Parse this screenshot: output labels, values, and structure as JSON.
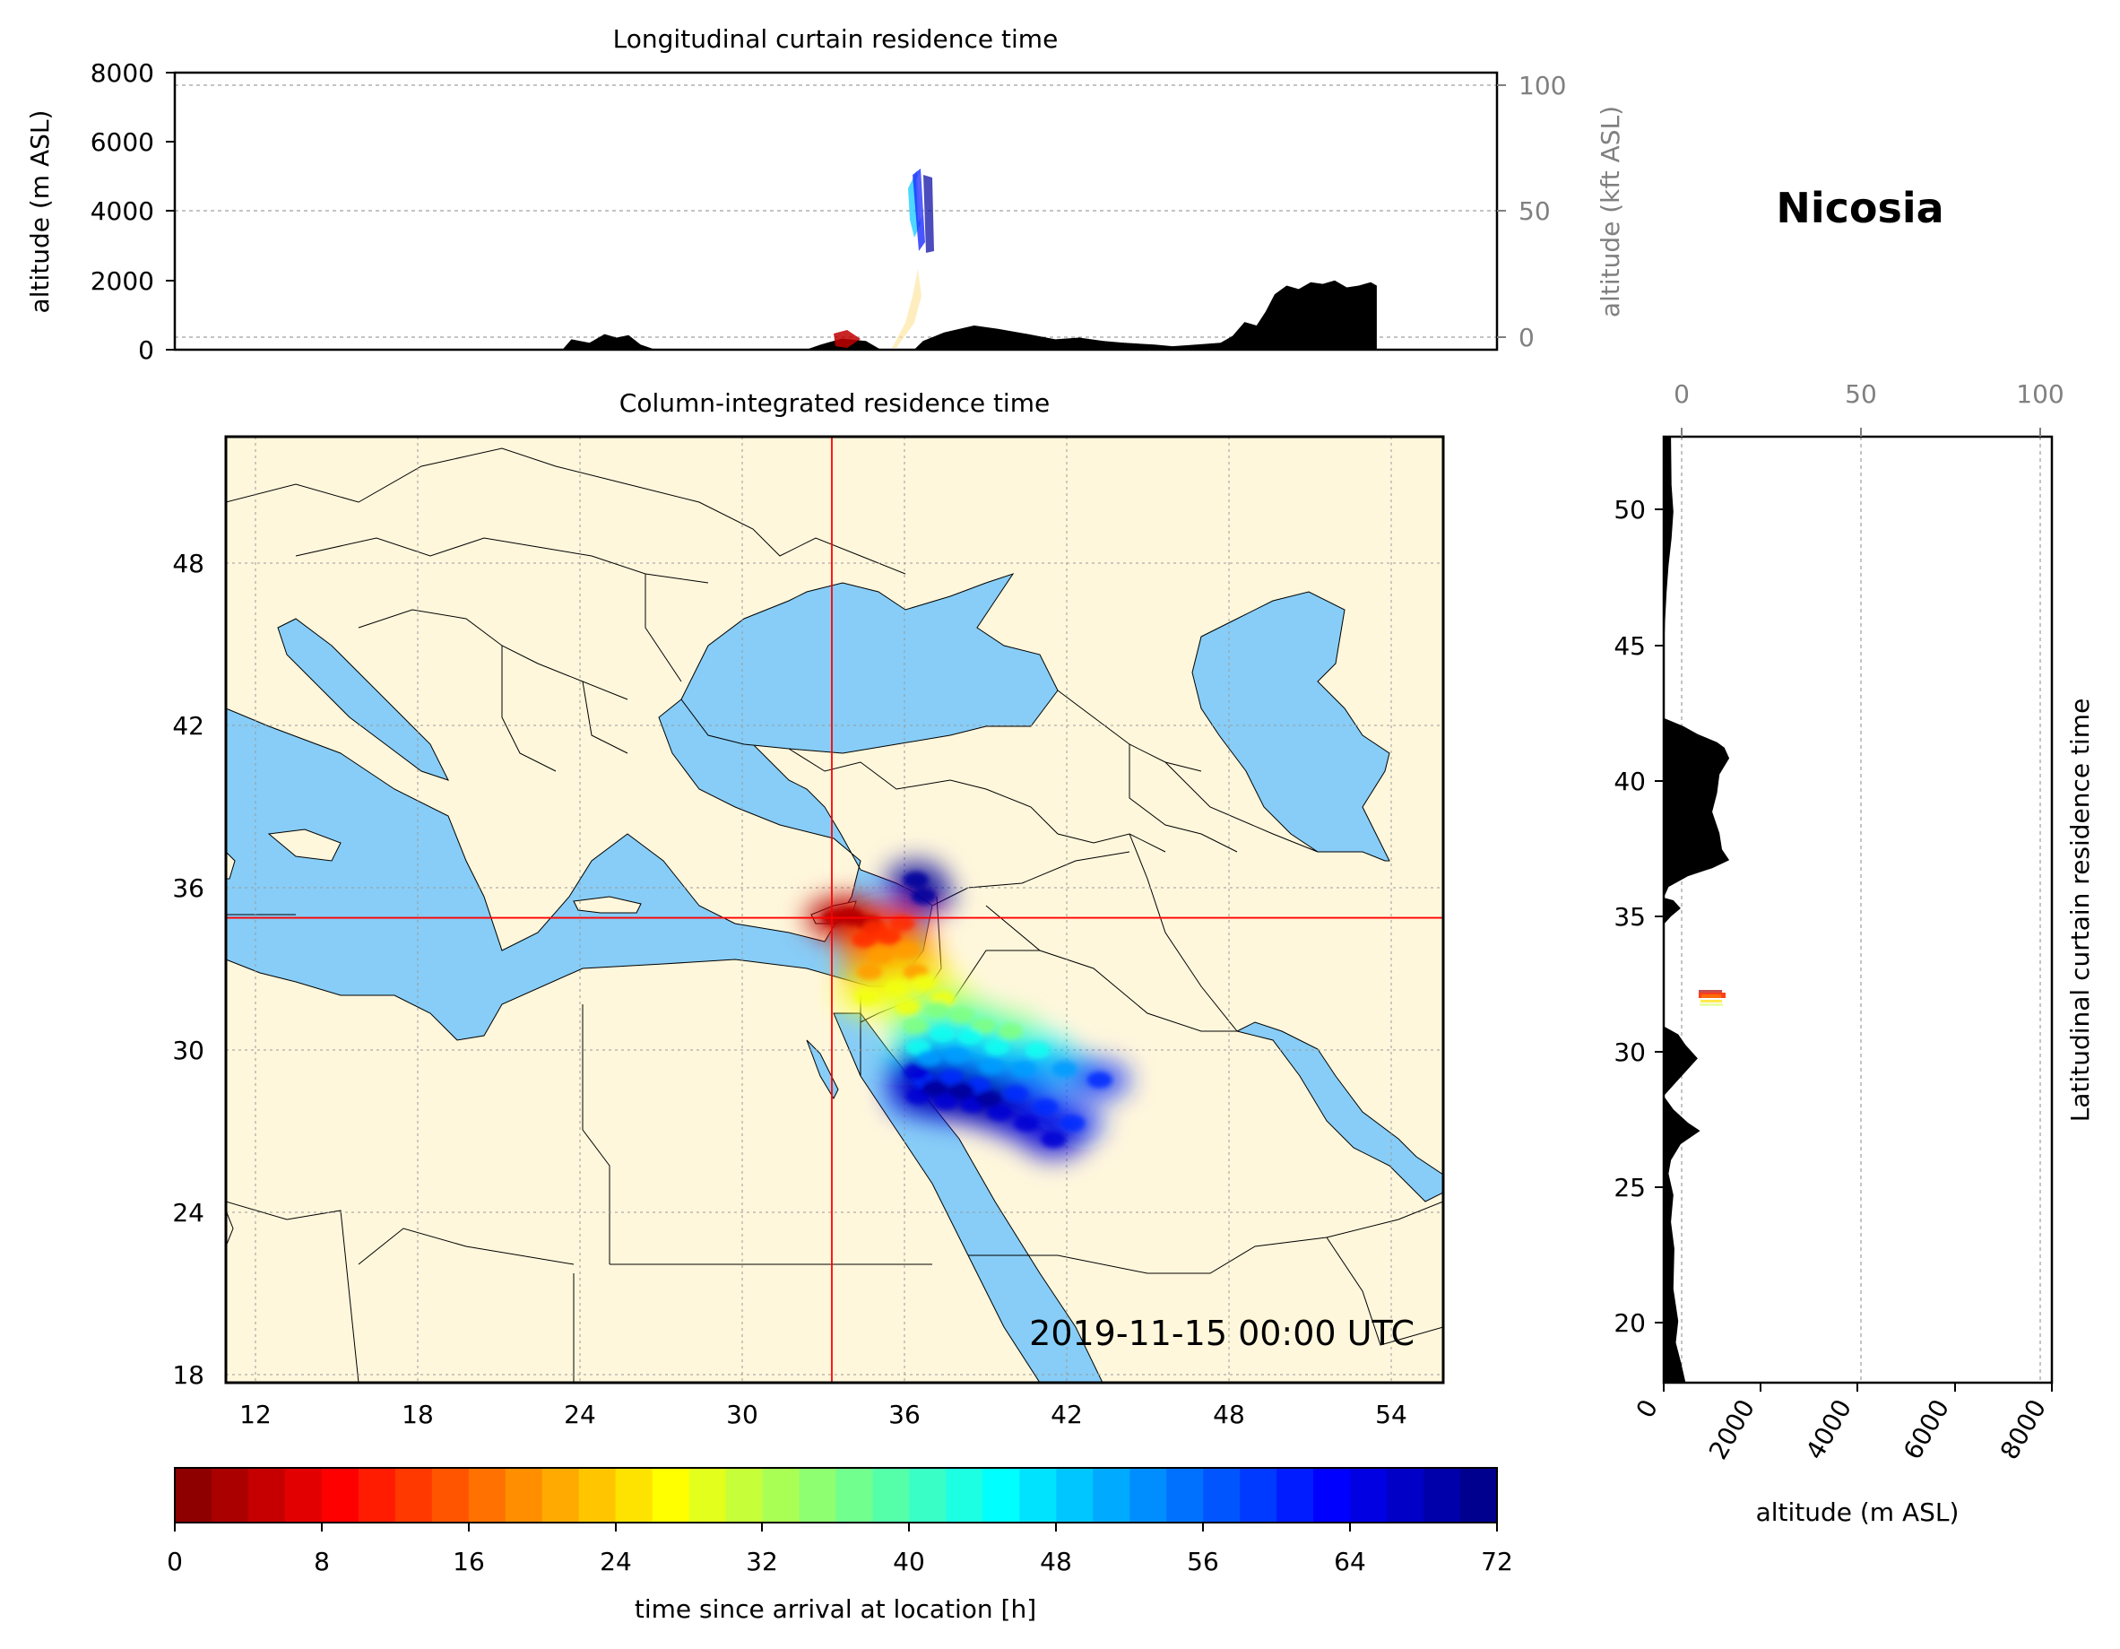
{
  "figure": {
    "station_title": "Nicosia",
    "timestamp": "2019-11-15 00:00 UTC"
  },
  "colors": {
    "ocean": "#87cdf7",
    "land": "#fff7dc",
    "crosshair": "#ff0000",
    "terrain": "#000000",
    "frame": "#000000"
  },
  "chart_data": [
    {
      "type": "area",
      "title": "Longitudinal curtain residence time",
      "ylabel": "altitude (m ASL)",
      "ylabel_right": "altitude (kft ASL)",
      "xlim": [
        11,
        55
      ],
      "ylim": [
        0,
        8000
      ],
      "yticks": [
        "0",
        "2000",
        "4000",
        "6000",
        "8000"
      ],
      "yticks_right": [
        "0",
        "50",
        "100"
      ],
      "grid": true,
      "series": [
        {
          "points": [
            [
              11,
              0
            ],
            [
              23.9,
              0
            ],
            [
              24.2,
              300
            ],
            [
              24.8,
              200
            ],
            [
              25.3,
              450
            ],
            [
              25.7,
              350
            ],
            [
              26.1,
              420
            ],
            [
              26.5,
              150
            ],
            [
              27.0,
              0
            ],
            [
              32.0,
              0
            ],
            [
              32.5,
              150
            ],
            [
              33.2,
              320
            ],
            [
              34.0,
              250
            ],
            [
              34.5,
              0
            ],
            [
              35.6,
              0
            ],
            [
              35.9,
              250
            ],
            [
              36.6,
              500
            ],
            [
              37.6,
              700
            ],
            [
              38.4,
              600
            ],
            [
              39.4,
              450
            ],
            [
              40.3,
              300
            ],
            [
              41.1,
              350
            ],
            [
              41.9,
              250
            ],
            [
              42.6,
              200
            ],
            [
              43.6,
              150
            ],
            [
              44.2,
              100
            ],
            [
              45.0,
              150
            ],
            [
              45.8,
              200
            ],
            [
              46.2,
              400
            ],
            [
              46.6,
              800
            ],
            [
              47.0,
              700
            ],
            [
              47.3,
              1100
            ],
            [
              47.6,
              1600
            ],
            [
              48.0,
              1850
            ],
            [
              48.4,
              1750
            ],
            [
              48.8,
              1950
            ],
            [
              49.2,
              1900
            ],
            [
              49.6,
              2000
            ],
            [
              50.0,
              1800
            ],
            [
              50.4,
              1850
            ],
            [
              50.8,
              1950
            ],
            [
              51.0,
              1850
            ],
            [
              51.0,
              0
            ]
          ]
        }
      ]
    },
    {
      "type": "heatmap",
      "title": "Column-integrated residence time",
      "xlim": [
        11,
        56
      ],
      "ylim": [
        18,
        53
      ],
      "xticks": [
        "12",
        "18",
        "24",
        "30",
        "36",
        "42",
        "48",
        "54"
      ],
      "yticks": [
        "18",
        "24",
        "30",
        "36",
        "42",
        "48"
      ],
      "release_point": [
        33.4,
        35.2
      ],
      "plume_groups": [
        {
          "hours": 4,
          "points": [
            [
              33.5,
              35.2
            ],
            [
              34.2,
              35.2
            ],
            [
              34.8,
              35.0
            ],
            [
              34.0,
              35.3
            ]
          ]
        },
        {
          "hours": 12,
          "points": [
            [
              35.0,
              34.8
            ],
            [
              35.5,
              34.5
            ],
            [
              34.6,
              34.4
            ],
            [
              36.0,
              35.0
            ]
          ]
        },
        {
          "hours": 20,
          "points": [
            [
              35.2,
              33.8
            ],
            [
              36.2,
              34.0
            ],
            [
              34.8,
              33.2
            ],
            [
              36.5,
              33.2
            ]
          ]
        },
        {
          "hours": 28,
          "points": [
            [
              35.8,
              32.6
            ],
            [
              36.8,
              32.8
            ],
            [
              34.7,
              32.3
            ],
            [
              37.5,
              32.2
            ],
            [
              36.2,
              31.9
            ]
          ]
        },
        {
          "hours": 36,
          "points": [
            [
              37.3,
              31.8
            ],
            [
              38.2,
              31.6
            ],
            [
              36.5,
              31.2
            ],
            [
              39.0,
              31.2
            ],
            [
              40.0,
              31.0
            ]
          ]
        },
        {
          "hours": 44,
          "points": [
            [
              37.5,
              30.9
            ],
            [
              38.5,
              30.8
            ],
            [
              36.6,
              30.4
            ],
            [
              39.5,
              30.4
            ],
            [
              41.0,
              30.3
            ]
          ]
        },
        {
          "hours": 52,
          "points": [
            [
              37.0,
              30.0
            ],
            [
              38.0,
              30.1
            ],
            [
              39.3,
              29.7
            ],
            [
              40.5,
              29.6
            ],
            [
              42.0,
              29.6
            ]
          ]
        },
        {
          "hours": 60,
          "points": [
            [
              36.8,
              29.2
            ],
            [
              37.8,
              29.3
            ],
            [
              38.8,
              29.0
            ],
            [
              40.2,
              28.7
            ],
            [
              41.3,
              28.2
            ],
            [
              42.3,
              27.6
            ],
            [
              43.3,
              29.2
            ]
          ]
        },
        {
          "hours": 66,
          "points": [
            [
              36.6,
              28.6
            ],
            [
              37.6,
              28.4
            ],
            [
              38.6,
              28.3
            ],
            [
              39.6,
              28.0
            ],
            [
              40.6,
              27.6
            ],
            [
              41.6,
              27.0
            ],
            [
              36.5,
              29.5
            ]
          ]
        },
        {
          "hours": 70,
          "points": [
            [
              37.2,
              28.9
            ],
            [
              38.2,
              28.8
            ],
            [
              39.2,
              28.5
            ],
            [
              36.8,
              36.0
            ],
            [
              36.5,
              36.6
            ]
          ]
        }
      ]
    },
    {
      "type": "area",
      "title": "Latitudinal curtain residence time",
      "xlabel": "altitude (m ASL)",
      "xlim": [
        0,
        8000
      ],
      "ylim": [
        17.5,
        52.8
      ],
      "xticks": [
        "0",
        "2000",
        "4000",
        "6000",
        "8000"
      ],
      "xticks_top": [
        "0",
        "50",
        "100"
      ],
      "yticks": [
        "20",
        "25",
        "30",
        "35",
        "40",
        "45",
        "50"
      ],
      "grid": true,
      "series": [
        {
          "points": [
            [
              52.8,
              150
            ],
            [
              51.0,
              160
            ],
            [
              50.0,
              200
            ],
            [
              49.0,
              160
            ],
            [
              48.0,
              100
            ],
            [
              47.0,
              60
            ],
            [
              46.0,
              30
            ],
            [
              45.0,
              10
            ],
            [
              42.3,
              0
            ],
            [
              42.0,
              400
            ],
            [
              41.7,
              700
            ],
            [
              41.4,
              1100
            ],
            [
              41.2,
              1250
            ],
            [
              40.8,
              1350
            ],
            [
              40.2,
              1150
            ],
            [
              39.5,
              1100
            ],
            [
              38.8,
              1000
            ],
            [
              38.0,
              1150
            ],
            [
              37.4,
              1200
            ],
            [
              37.0,
              1350
            ],
            [
              36.7,
              1000
            ],
            [
              36.4,
              500
            ],
            [
              36.0,
              100
            ],
            [
              35.6,
              0
            ],
            [
              35.5,
              200
            ],
            [
              35.2,
              350
            ],
            [
              34.9,
              150
            ],
            [
              34.6,
              0
            ],
            [
              30.8,
              0
            ],
            [
              30.5,
              300
            ],
            [
              30.1,
              450
            ],
            [
              29.6,
              700
            ],
            [
              29.1,
              450
            ],
            [
              28.6,
              200
            ],
            [
              28.2,
              0
            ],
            [
              27.7,
              200
            ],
            [
              27.2,
              500
            ],
            [
              26.9,
              750
            ],
            [
              26.4,
              350
            ],
            [
              25.8,
              150
            ],
            [
              25.3,
              100
            ],
            [
              24.5,
              200
            ],
            [
              23.5,
              150
            ],
            [
              22.5,
              220
            ],
            [
              21.0,
              200
            ],
            [
              19.8,
              300
            ],
            [
              19.0,
              250
            ],
            [
              18.3,
              350
            ],
            [
              17.9,
              400
            ],
            [
              17.5,
              450
            ]
          ]
        }
      ]
    },
    {
      "type": "heatmap",
      "title": "",
      "xlabel": "time since arrival at location [h]",
      "xlim": [
        0,
        72
      ],
      "xticks": [
        "0",
        "8",
        "16",
        "24",
        "32",
        "40",
        "48",
        "56",
        "64",
        "72"
      ],
      "colormap": "jet_reversed",
      "bins": 36
    }
  ]
}
